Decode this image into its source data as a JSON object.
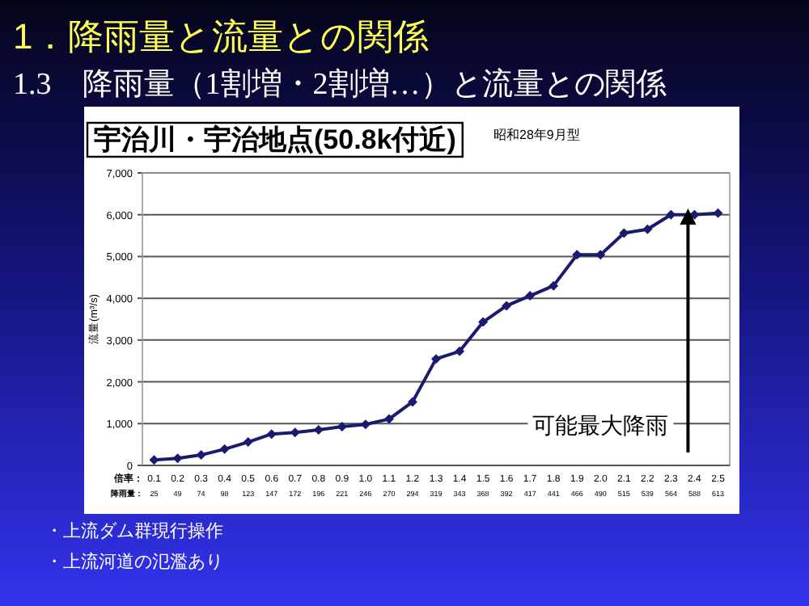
{
  "chart_data": {
    "type": "line",
    "title": "宇治川・宇治地点(50.8k付近)",
    "categories": [
      "0.1\n25",
      "0.2\n49",
      "0.3\n74",
      "0.4\n98",
      "0.5\n123",
      "0.6\n147",
      "0.7\n172",
      "0.8\n196",
      "0.9\n221",
      "1.0\n246",
      "1.1\n270",
      "1.2\n294",
      "1.3\n319",
      "1.4\n343",
      "1.5\n368",
      "1.6\n392",
      "1.7\n417",
      "1.8\n441",
      "1.9\n466",
      "2.0\n490",
      "2.1\n515",
      "2.2\n539",
      "2.3\n564",
      "2.4\n588",
      "2.5\n613"
    ],
    "series": [
      {
        "color": "#1a1a6e",
        "values": [
          130,
          170,
          250,
          390,
          560,
          750,
          790,
          850,
          930,
          980,
          1110,
          1520,
          2550,
          2730,
          3430,
          3820,
          4060,
          4300,
          5040,
          5040,
          5560,
          5650,
          6000,
          6000,
          6040
        ]
      }
    ],
    "ylabel": "流量(m³/s)",
    "ylim": [
      0,
      7000
    ],
    "yticks": [
      0,
      {
        "value": 1000,
        "label": "1,000"
      },
      {
        "value": 2000,
        "label": "2,000"
      },
      {
        "value": 3000,
        "label": "3,000"
      },
      {
        "value": 4000,
        "label": "4,000"
      },
      {
        "value": 5000,
        "label": "5,000"
      },
      {
        "value": 6000,
        "label": "6,000"
      },
      {
        "value": 7000,
        "label": "7,000"
      }
    ],
    "grid": "y",
    "marker": "diamond",
    "line_style": "solid",
    "annotations": [
      "1．降雨量と流量との関係",
      "昭和28年9月型",
      "可能最大降雨",
      "倍率：",
      "降雨量：",
      "・上流ダム群現行操作",
      "・上流河道の氾濫あり"
    ],
    "subtitle": "1.3　降雨量（1割増・2割増…）と流量との関係"
  }
}
